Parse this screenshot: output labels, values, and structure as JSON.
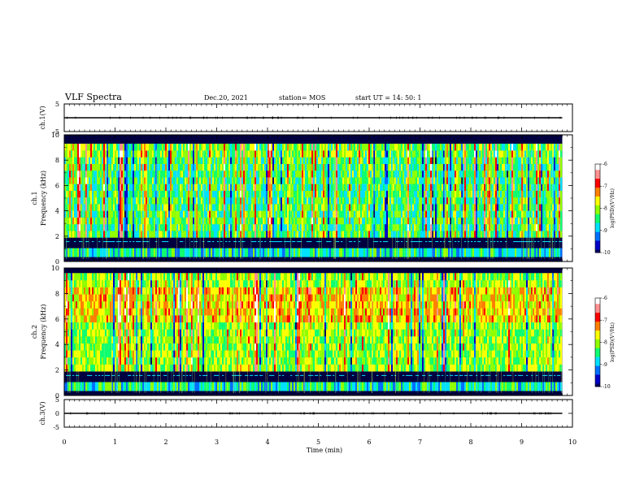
{
  "header": {
    "title": "VLF Spectra",
    "date": "Dec.20, 2021",
    "station": "station= MOS",
    "start_time": "start  UT =   14: 50: 1"
  },
  "chart_data": [
    {
      "id": "ch1-waveform",
      "type": "line",
      "ylabel": "ch.1(V)",
      "ylim": [
        -5,
        5
      ],
      "yticks": [
        "5",
        "-5"
      ],
      "x": [
        0,
        9.8
      ],
      "values": [
        0,
        0
      ],
      "xlim": [
        0,
        10
      ]
    },
    {
      "id": "ch1-spectrogram",
      "type": "heatmap",
      "ylabel": "ch.1\nFrequency (kHz)",
      "ylim": [
        0,
        10
      ],
      "yticks": [
        "0",
        "2",
        "4",
        "6",
        "8",
        "10"
      ],
      "xlim": [
        0,
        10
      ],
      "data_extent_x": [
        0,
        9.8
      ],
      "colorbar": {
        "label": "log(PSD)(V²/Hz)",
        "range": [
          -10,
          -6
        ],
        "ticks": [
          "-6",
          "-7",
          "-8",
          "-9",
          "-10"
        ]
      }
    },
    {
      "id": "ch2-spectrogram",
      "type": "heatmap",
      "ylabel": "ch.2\nFrequency (kHz)",
      "ylim": [
        0,
        10
      ],
      "yticks": [
        "0",
        "2",
        "4",
        "6",
        "8",
        "10"
      ],
      "xlim": [
        0,
        10
      ],
      "data_extent_x": [
        0,
        9.8
      ],
      "colorbar": {
        "label": "log(PSD)(V²/Hz)",
        "range": [
          -10,
          -6
        ],
        "ticks": [
          "-6",
          "-7",
          "-8",
          "-9",
          "-10"
        ]
      }
    },
    {
      "id": "ch3-waveform",
      "type": "line",
      "ylabel": "ch.3(V)",
      "ylim": [
        -5,
        5
      ],
      "yticks": [
        "5",
        "0",
        "-5"
      ],
      "x": [
        0,
        9.8
      ],
      "values": [
        0,
        0
      ],
      "xlim": [
        0,
        10
      ]
    }
  ],
  "xaxis": {
    "label": "Time  (min)",
    "ticks": [
      "0",
      "1",
      "2",
      "3",
      "4",
      "5",
      "6",
      "7",
      "8",
      "9",
      "10"
    ]
  },
  "colors": {
    "background": "#000040",
    "colormap": [
      "#000060",
      "#0000c8",
      "#0070ff",
      "#00e0ff",
      "#10ff70",
      "#90ff00",
      "#ffff00",
      "#ff8000",
      "#ff0000",
      "#ff9090",
      "#ffffff"
    ]
  }
}
